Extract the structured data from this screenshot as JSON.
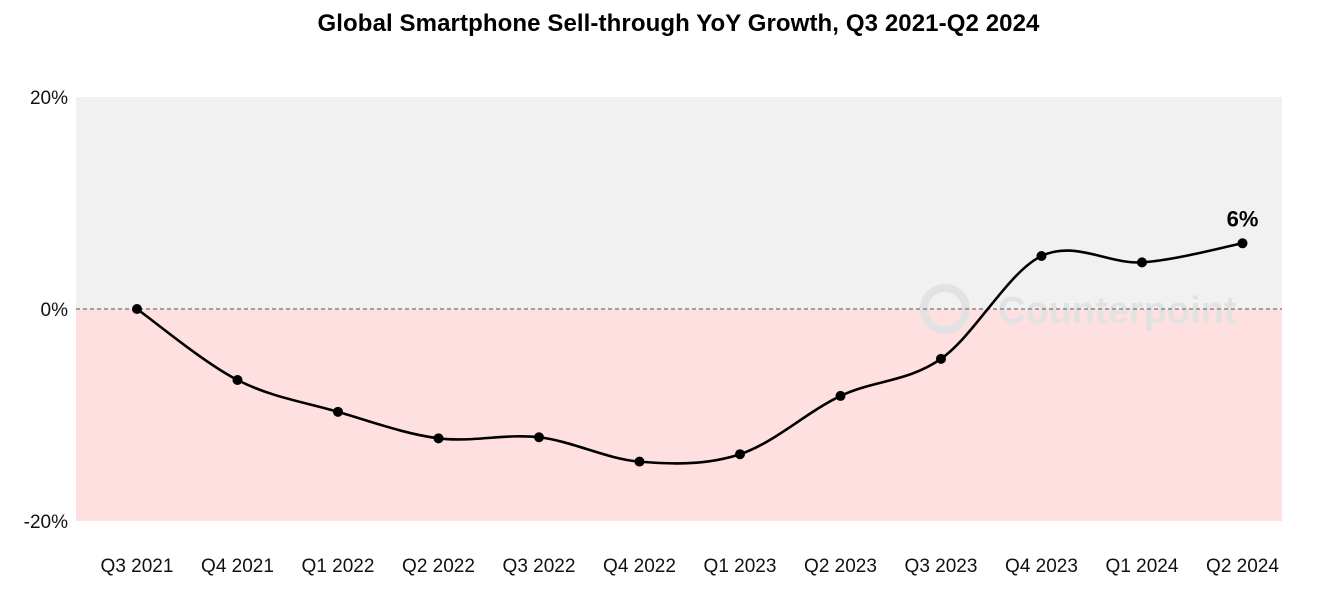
{
  "chart_data": {
    "type": "line",
    "title": "Global Smartphone Sell-through YoY Growth, Q3 2021-Q2 2024",
    "categories": [
      "Q3 2021",
      "Q4 2021",
      "Q1 2022",
      "Q2 2022",
      "Q3 2022",
      "Q4 2022",
      "Q1 2023",
      "Q2 2023",
      "Q3 2023",
      "Q4 2023",
      "Q1 2024",
      "Q2 2024"
    ],
    "series": [
      {
        "values": [
          0,
          -6.7,
          -9.7,
          -12.2,
          -12.1,
          -14.4,
          -13.7,
          -8.2,
          -4.7,
          5.0,
          4.4,
          6.2
        ]
      }
    ],
    "ylim": [
      -20,
      20
    ],
    "yticks": [
      -20,
      0,
      20
    ],
    "ytick_labels": [
      "-20%",
      "0%",
      "20%"
    ],
    "xlabel": "",
    "ylabel": "",
    "grid": false,
    "legend": "none",
    "annotations": [
      {
        "category": "Q2 2024",
        "text": "6%"
      }
    ],
    "watermark": "Counterpoint",
    "colors": {
      "line": "#000000",
      "positive_band": "#f1f1f1",
      "negative_band": "#fde0df",
      "zero_line": "#555555",
      "watermark": "#e2e2e2"
    }
  }
}
